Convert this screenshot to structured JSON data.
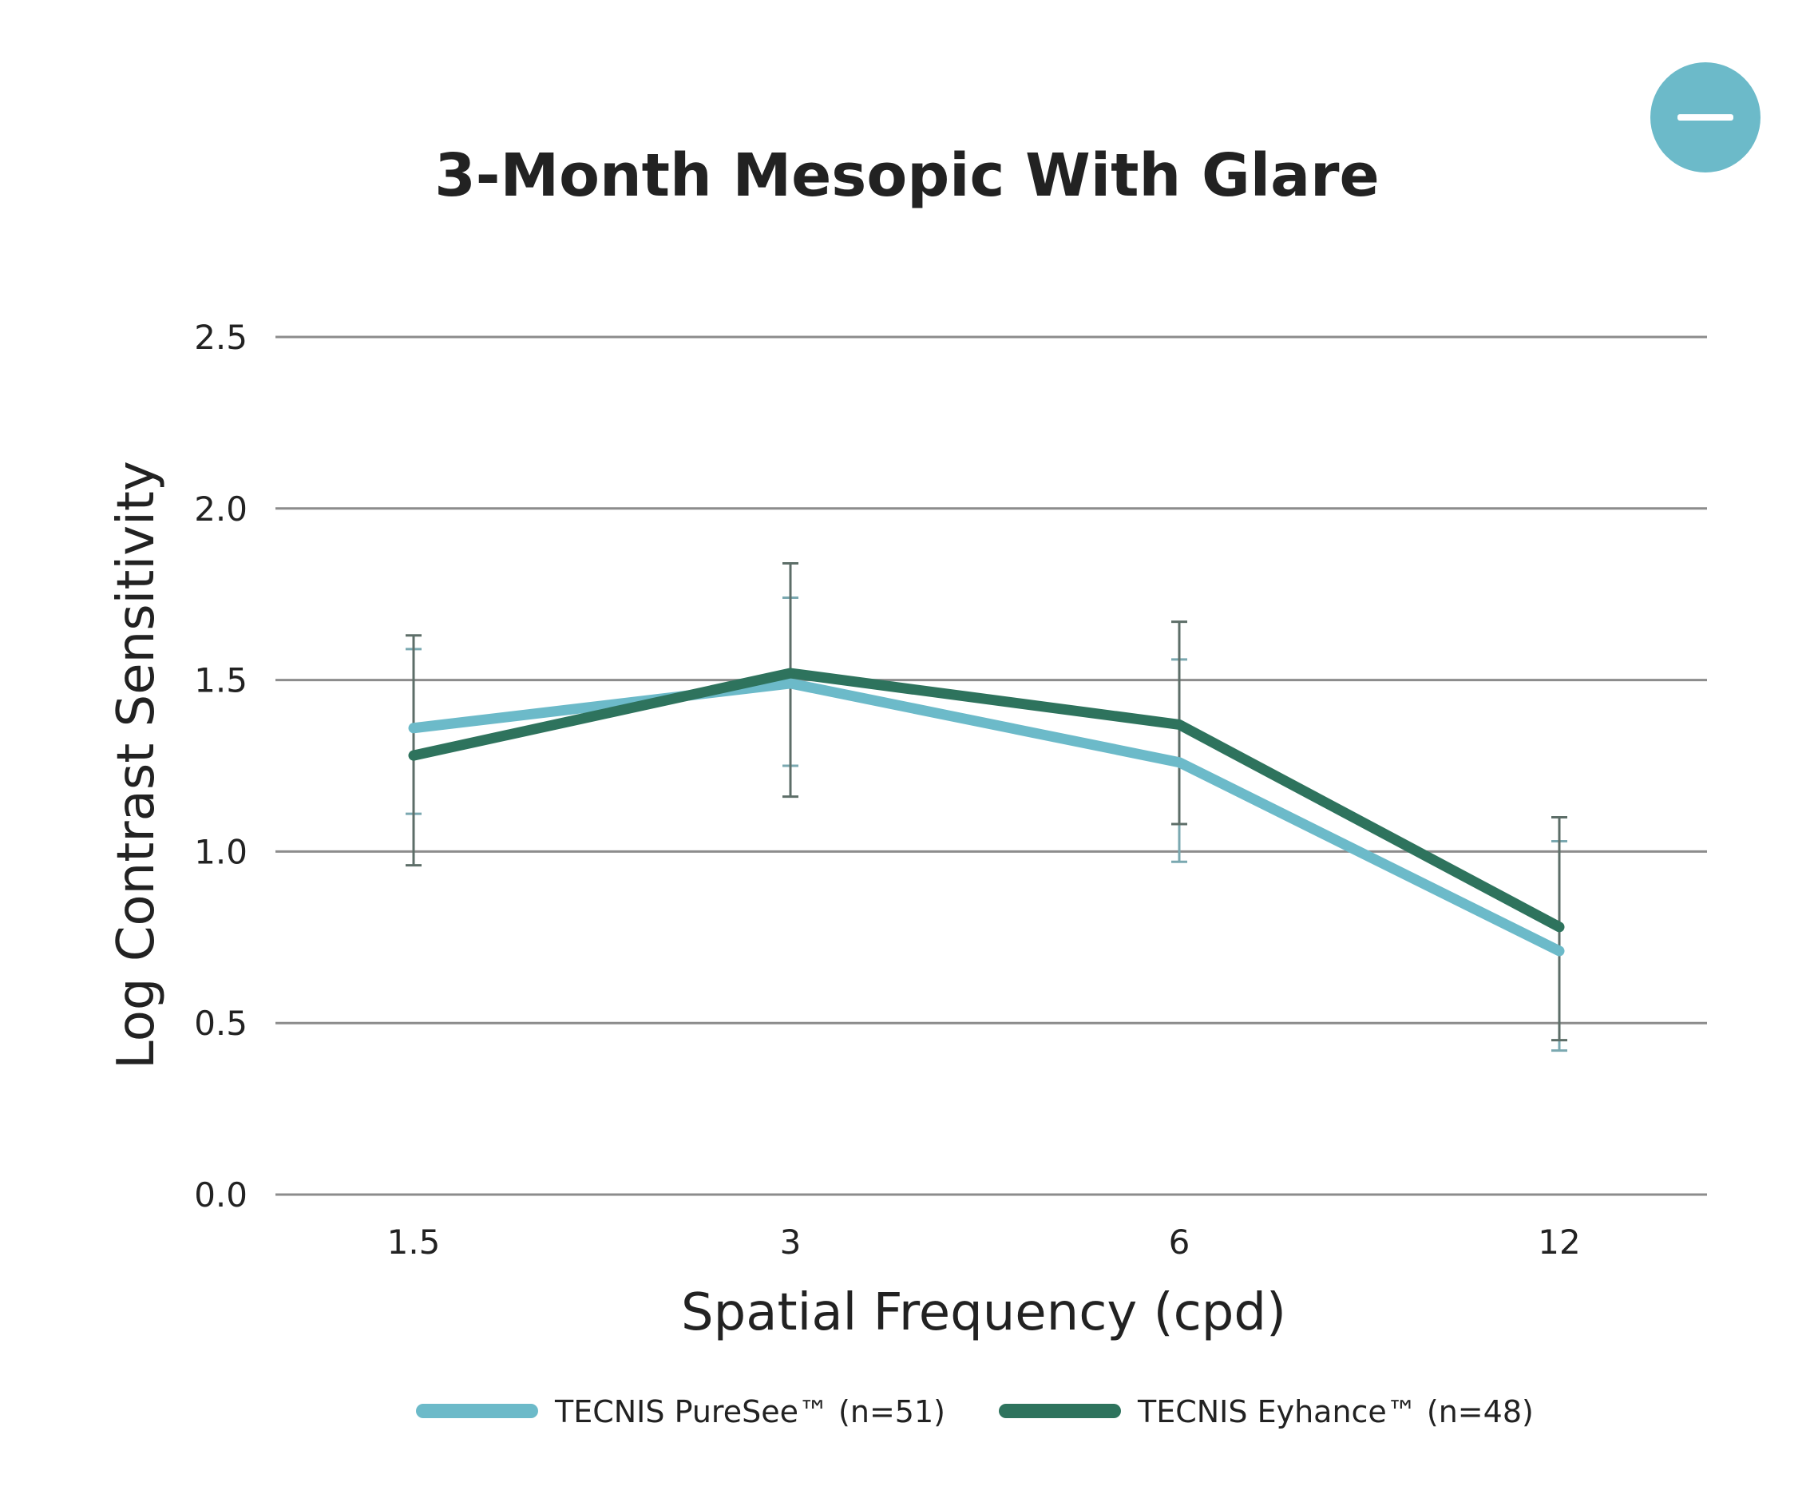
{
  "colors": {
    "puresee": "#6cbac9",
    "eyhance": "#2e735d",
    "grid": "#8c8c8c",
    "error_bar_puresee": "#7aa8b0",
    "error_bar_eyhance": "#5d6e68",
    "collapse_button": "#6cbac9"
  },
  "collapse_button": {
    "icon": "minus-icon"
  },
  "chart_data": {
    "type": "line",
    "title": "3-Month Mesopic With Glare",
    "xlabel": "Spatial Frequency (cpd)",
    "ylabel": "Log Contrast Sensitivity",
    "categories": [
      "1.5",
      "3",
      "6",
      "12"
    ],
    "ylim": [
      0,
      2.5
    ],
    "yticks": [
      "0.0",
      "0.5",
      "1.0",
      "1.5",
      "2.0",
      "2.5"
    ],
    "ytick_values": [
      0,
      0.5,
      1.0,
      1.5,
      2.0,
      2.5
    ],
    "grid": true,
    "legend_position": "bottom",
    "series": [
      {
        "name": "TECNIS PureSee™ (n=51)",
        "color": "#6cbac9",
        "values": [
          1.36,
          1.49,
          1.26,
          0.71
        ],
        "error_low": [
          1.11,
          1.25,
          0.97,
          0.42
        ],
        "error_high": [
          1.59,
          1.74,
          1.56,
          1.03
        ]
      },
      {
        "name": "TECNIS Eyhance™ (n=48)",
        "color": "#2e735d",
        "values": [
          1.28,
          1.52,
          1.37,
          0.78
        ],
        "error_low": [
          0.96,
          1.16,
          1.08,
          0.45
        ],
        "error_high": [
          1.63,
          1.84,
          1.67,
          1.1
        ]
      }
    ]
  }
}
